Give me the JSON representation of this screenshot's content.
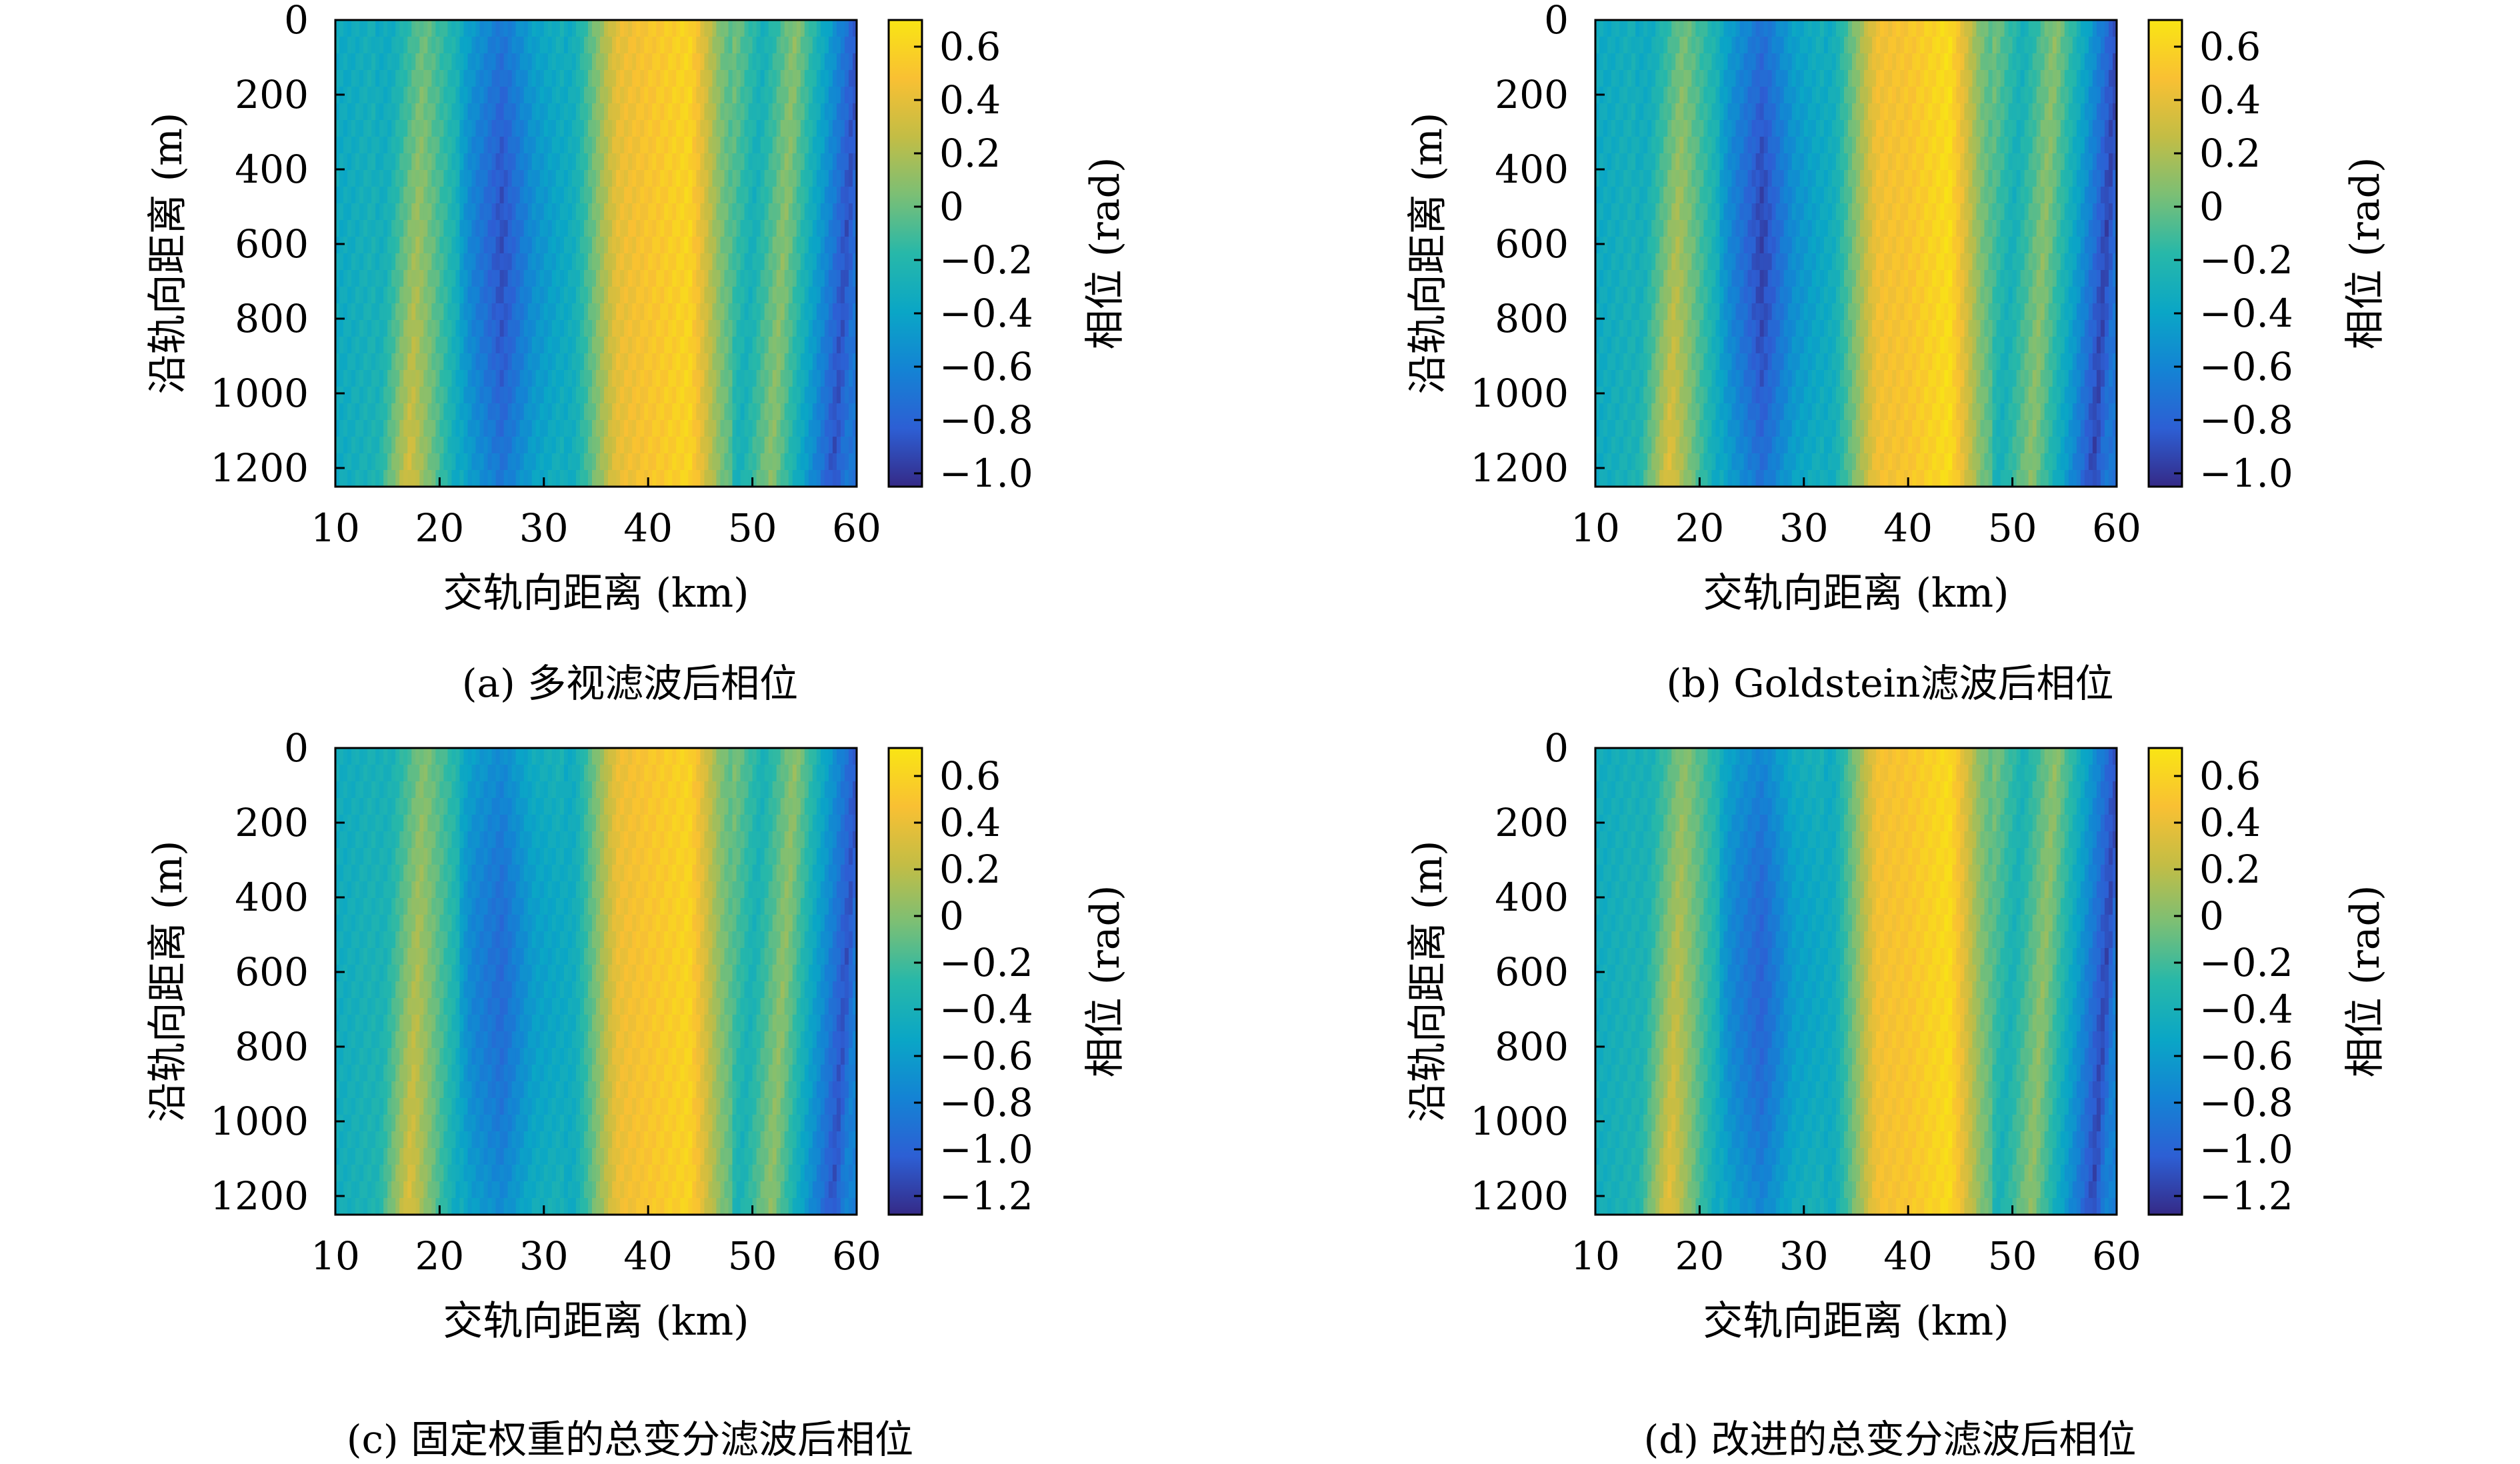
{
  "colors": {
    "parula": [
      "#352a87",
      "#2d5fd4",
      "#1483d4",
      "#0aa6c6",
      "#27b8a9",
      "#7bbf75",
      "#c3bd45",
      "#f9c033",
      "#f9e514"
    ]
  },
  "panels": [
    {
      "caption": "(a) 多视滤波后相位",
      "chart_data": {
        "type": "heatmap",
        "xlabel": "交轨向距离 (km)",
        "ylabel": "沿轨向距离 (m)",
        "colorbar_label": "相位 (rad)",
        "xlim": [
          10,
          60
        ],
        "ylim": [
          0,
          1250
        ],
        "y_reversed": true,
        "xticks": [
          10,
          20,
          30,
          40,
          50,
          60
        ],
        "xtick_labels": [
          "10",
          "20",
          "30",
          "40",
          "50",
          "60"
        ],
        "yticks": [
          0,
          200,
          400,
          600,
          800,
          1000,
          1200
        ],
        "ytick_labels": [
          "0",
          "200",
          "400",
          "600",
          "800",
          "1000",
          "1200"
        ],
        "clim": [
          -1.05,
          0.7
        ],
        "cticks": [
          0.6,
          0.4,
          0.2,
          0,
          -0.2,
          -0.4,
          -0.6,
          -0.8,
          -1.0
        ],
        "ctick_labels": [
          "0.6",
          "0.4",
          "0.2",
          "0",
          "−0.2",
          "−0.4",
          "−0.6",
          "−0.8",
          "−1.0"
        ],
        "colormap": "parula",
        "phase_profile_x_km": [
          10,
          14,
          17,
          20,
          23,
          26,
          29,
          33,
          37,
          40,
          44,
          47,
          50,
          53,
          56,
          59,
          60
        ],
        "phase_profile_rad": [
          -0.35,
          -0.25,
          0.35,
          -0.1,
          -0.6,
          -0.9,
          -0.55,
          -0.3,
          0.4,
          0.5,
          0.6,
          0.05,
          -0.3,
          0.1,
          -0.4,
          -0.9,
          -0.7
        ]
      }
    },
    {
      "caption": "(b) Goldstein滤波后相位",
      "chart_data": {
        "type": "heatmap",
        "xlabel": "交轨向距离 (km)",
        "ylabel": "沿轨向距离 (m)",
        "colorbar_label": "相位 (rad)",
        "xlim": [
          10,
          60
        ],
        "ylim": [
          0,
          1250
        ],
        "y_reversed": true,
        "xticks": [
          10,
          20,
          30,
          40,
          50,
          60
        ],
        "xtick_labels": [
          "10",
          "20",
          "30",
          "40",
          "50",
          "60"
        ],
        "yticks": [
          0,
          200,
          400,
          600,
          800,
          1000,
          1200
        ],
        "ytick_labels": [
          "0",
          "200",
          "400",
          "600",
          "800",
          "1000",
          "1200"
        ],
        "clim": [
          -1.05,
          0.7
        ],
        "cticks": [
          0.6,
          0.4,
          0.2,
          0,
          -0.2,
          -0.4,
          -0.6,
          -0.8,
          -1.0
        ],
        "ctick_labels": [
          "0.6",
          "0.4",
          "0.2",
          "0",
          "−0.2",
          "−0.4",
          "−0.6",
          "−0.8",
          "−1.0"
        ],
        "colormap": "parula",
        "phase_profile_x_km": [
          10,
          14,
          17,
          20,
          23,
          26,
          29,
          33,
          37,
          40,
          44,
          47,
          50,
          53,
          56,
          59,
          60
        ],
        "phase_profile_rad": [
          -0.35,
          -0.25,
          0.4,
          -0.1,
          -0.6,
          -0.95,
          -0.55,
          -0.3,
          0.45,
          0.5,
          0.65,
          0.05,
          -0.3,
          0.1,
          -0.4,
          -0.95,
          -0.7
        ]
      }
    },
    {
      "caption": "(c) 固定权重的总变分滤波后相位",
      "chart_data": {
        "type": "heatmap",
        "xlabel": "交轨向距离 (km)",
        "ylabel": "沿轨向距离 (m)",
        "colorbar_label": "相位 (rad)",
        "xlim": [
          10,
          60
        ],
        "ylim": [
          0,
          1250
        ],
        "y_reversed": true,
        "xticks": [
          10,
          20,
          30,
          40,
          50,
          60
        ],
        "xtick_labels": [
          "10",
          "20",
          "30",
          "40",
          "50",
          "60"
        ],
        "yticks": [
          0,
          200,
          400,
          600,
          800,
          1000,
          1200
        ],
        "ytick_labels": [
          "0",
          "200",
          "400",
          "600",
          "800",
          "1000",
          "1200"
        ],
        "clim": [
          -1.28,
          0.72
        ],
        "cticks": [
          0.6,
          0.4,
          0.2,
          0,
          -0.2,
          -0.4,
          -0.6,
          -0.8,
          -1.0,
          -1.2
        ],
        "ctick_labels": [
          "0.6",
          "0.4",
          "0.2",
          "0",
          "−0.2",
          "−0.4",
          "−0.6",
          "−0.8",
          "−1.0",
          "−1.2"
        ],
        "colormap": "parula",
        "phase_profile_x_km": [
          10,
          14,
          17,
          20,
          23,
          26,
          29,
          33,
          37,
          40,
          44,
          47,
          50,
          53,
          56,
          59,
          60
        ],
        "phase_profile_rad": [
          -0.45,
          -0.35,
          0.35,
          -0.2,
          -0.75,
          -0.95,
          -0.6,
          -0.45,
          0.4,
          0.5,
          0.6,
          0.0,
          -0.4,
          0.05,
          -0.55,
          -1.1,
          -0.8
        ]
      }
    },
    {
      "caption": "(d) 改进的总变分滤波后相位",
      "chart_data": {
        "type": "heatmap",
        "xlabel": "交轨向距离 (km)",
        "ylabel": "沿轨向距离 (m)",
        "colorbar_label": "相位 (rad)",
        "xlim": [
          10,
          60
        ],
        "ylim": [
          0,
          1250
        ],
        "y_reversed": true,
        "xticks": [
          10,
          20,
          30,
          40,
          50,
          60
        ],
        "xtick_labels": [
          "10",
          "20",
          "30",
          "40",
          "50",
          "60"
        ],
        "yticks": [
          0,
          200,
          400,
          600,
          800,
          1000,
          1200
        ],
        "ytick_labels": [
          "0",
          "200",
          "400",
          "600",
          "800",
          "1000",
          "1200"
        ],
        "clim": [
          -1.28,
          0.72
        ],
        "cticks": [
          0.6,
          0.4,
          0.2,
          0,
          -0.2,
          -0.4,
          -0.6,
          -0.8,
          -1.0,
          -1.2
        ],
        "ctick_labels": [
          "0.6",
          "0.4",
          "0.2",
          "0",
          "−0.2",
          "−0.4",
          "−0.6",
          "−0.8",
          "−1.0",
          "−1.2"
        ],
        "colormap": "parula",
        "phase_profile_x_km": [
          10,
          14,
          17,
          20,
          23,
          26,
          29,
          33,
          37,
          40,
          44,
          47,
          50,
          53,
          56,
          59,
          60
        ],
        "phase_profile_rad": [
          -0.45,
          -0.35,
          0.4,
          -0.2,
          -0.75,
          -1.0,
          -0.6,
          -0.45,
          0.45,
          0.5,
          0.65,
          0.0,
          -0.4,
          0.05,
          -0.55,
          -1.15,
          -0.8
        ]
      }
    }
  ]
}
